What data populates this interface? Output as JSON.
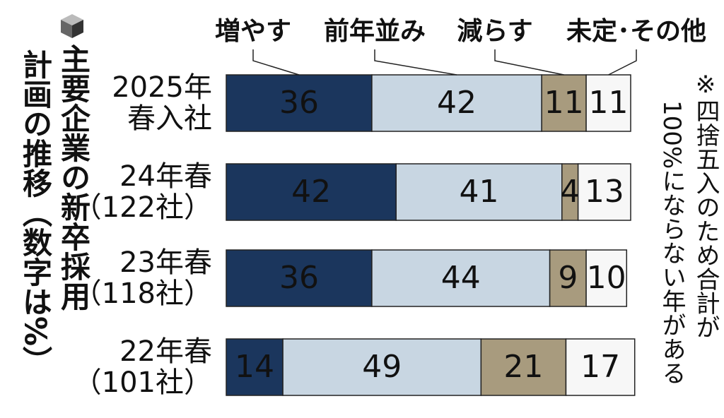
{
  "chart_data": {
    "type": "stacked-bar-horizontal",
    "title": [
      "主要企業の新卒採用",
      "計画の推移（数字は%）"
    ],
    "note": [
      "※四捨五入のため合計が",
      "100%にならない年がある"
    ],
    "categories": [
      "2025年",
      "24年春",
      "23年春",
      "22年春"
    ],
    "category_notes": [
      "春入社",
      "（122社）",
      "（118社）",
      "（101社）"
    ],
    "series": [
      {
        "name": "増やす",
        "color": "#1b365d",
        "values": [
          36,
          42,
          36,
          14
        ]
      },
      {
        "name": "前年並み",
        "color": "#c8d6e2",
        "values": [
          42,
          41,
          44,
          49
        ]
      },
      {
        "name": "減らす",
        "color": "#a89b7e",
        "values": [
          11,
          4,
          9,
          21
        ]
      },
      {
        "name": "未定･その他",
        "color": "#f7f7f7",
        "values": [
          11,
          13,
          10,
          17
        ]
      }
    ]
  }
}
